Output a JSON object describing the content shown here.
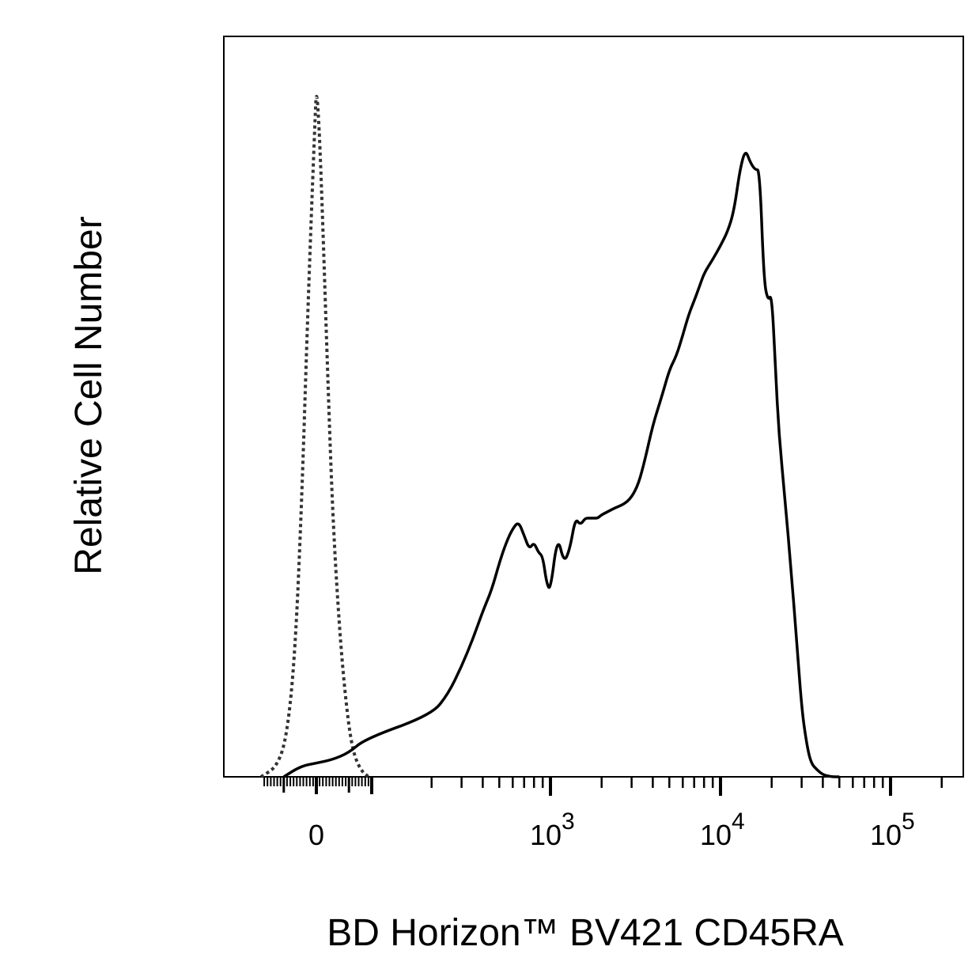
{
  "chart_data": {
    "type": "line",
    "title": "",
    "xlabel": "BD Horizon™ BV421 CD45RA",
    "ylabel": "Relative Cell Number",
    "x_scale": "biexponential",
    "xlim": [
      -250,
      170000
    ],
    "ylim": [
      0,
      100
    ],
    "grid": false,
    "legend": "none",
    "x_ticks": [
      {
        "value": 0,
        "base": "0",
        "exp": ""
      },
      {
        "value": 1000,
        "base": "10",
        "exp": "3"
      },
      {
        "value": 10000,
        "base": "10",
        "exp": "4"
      },
      {
        "value": 100000,
        "base": "10",
        "exp": "5"
      }
    ],
    "series": [
      {
        "style": "dotted",
        "color": "#333333",
        "x": [
          -170,
          -120,
          -90,
          -65,
          -45,
          -30,
          -15,
          -5,
          0,
          8,
          20,
          35,
          50,
          70,
          90,
          110,
          135,
          160
        ],
        "y": [
          0,
          1.5,
          6,
          18,
          40,
          62,
          82,
          94,
          100,
          95,
          80,
          58,
          38,
          22,
          11,
          4,
          1,
          0
        ]
      },
      {
        "style": "solid",
        "color": "#000000",
        "x": [
          -100,
          -50,
          0,
          50,
          100,
          150,
          200,
          250,
          300,
          350,
          400,
          450,
          500,
          550,
          600,
          650,
          700,
          750,
          800,
          850,
          900,
          950,
          1000,
          1100,
          1200,
          1300,
          1400,
          1500,
          1600,
          1700,
          1800,
          1900,
          2000,
          2200,
          2400,
          2700,
          3000,
          3300,
          3600,
          4000,
          4500,
          5000,
          5500,
          6000,
          6500,
          7000,
          7500,
          8000,
          9000,
          10000,
          11000,
          12000,
          13000,
          14000,
          15000,
          16000,
          17000,
          18000,
          19000,
          20000,
          21000,
          22000,
          24000,
          26000,
          28000,
          30000,
          32000,
          34000,
          37000,
          40000,
          45000,
          50000
        ],
        "y": [
          0,
          1.5,
          2,
          2.5,
          3.5,
          5.5,
          9,
          12,
          16,
          20,
          24,
          27,
          31,
          34,
          36,
          37,
          35,
          33,
          34,
          32.5,
          32,
          28,
          27,
          35,
          31,
          33,
          37.5,
          36.5,
          37.5,
          37.5,
          37.5,
          37.5,
          38,
          38.5,
          39,
          39.5,
          40.5,
          42.5,
          46,
          51,
          55,
          59,
          61,
          64,
          67,
          69,
          71,
          73,
          75,
          77,
          79,
          82,
          88,
          91,
          89,
          88,
          88,
          72,
          69,
          70,
          60,
          50,
          40,
          30,
          20,
          10,
          5,
          2,
          1,
          0.3,
          0,
          0
        ]
      }
    ]
  }
}
